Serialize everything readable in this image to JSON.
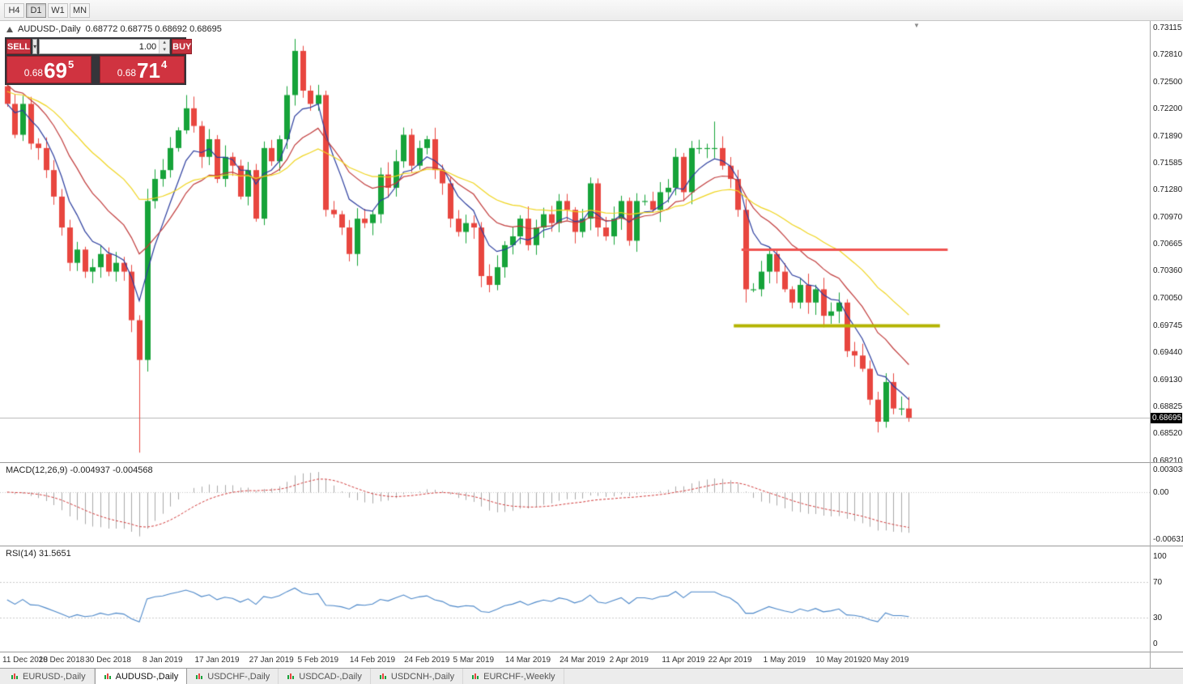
{
  "toolbar": {
    "timeframes": [
      {
        "label": "H4",
        "active": false
      },
      {
        "label": "D1",
        "active": true
      },
      {
        "label": "W1",
        "active": false
      },
      {
        "label": "MN",
        "active": false
      }
    ]
  },
  "chart_header": {
    "symbol": "AUDUSD-,Daily",
    "ohlc": "0.68772 0.68775 0.68692 0.68695"
  },
  "trade_panel": {
    "sell_label": "SELL",
    "buy_label": "BUY",
    "volume": "1.00",
    "sell_price": {
      "prefix": "0.68",
      "pips": "69",
      "point": "5"
    },
    "buy_price": {
      "prefix": "0.68",
      "pips": "71",
      "point": "4"
    }
  },
  "icons": {
    "chart_title_icon": "triangle-up",
    "shift_marker": "triangle-down",
    "volume_dropdown": "chevron-down",
    "volume_spinner_up": "chevron-up",
    "volume_spinner_down": "chevron-down",
    "tab_icon": "mini-candlestick-chart"
  },
  "chart_data": {
    "type": "candlestick",
    "symbol": "AUDUSD",
    "period": "Daily",
    "price_axis": {
      "max": 0.73115,
      "min": 0.6821,
      "labels": [
        "0.73115",
        "0.72810",
        "0.72500",
        "0.72200",
        "0.71890",
        "0.71585",
        "0.71280",
        "0.70970",
        "0.70665",
        "0.70360",
        "0.70050",
        "0.69745",
        "0.69440",
        "0.69130",
        "0.68825",
        "0.68520",
        "0.68210"
      ]
    },
    "x_axis": {
      "labels": [
        "11 Dec 2018",
        "20 Dec 2018",
        "30 Dec 2018",
        "8 Jan 2019",
        "17 Jan 2019",
        "27 Jan 2019",
        "5 Feb 2019",
        "14 Feb 2019",
        "24 Feb 2019",
        "5 Mar 2019",
        "14 Mar 2019",
        "24 Mar 2019",
        "2 Apr 2019",
        "11 Apr 2019",
        "22 Apr 2019",
        "1 May 2019",
        "10 May 2019",
        "20 May 2019"
      ],
      "bar_indices": [
        0,
        7,
        13,
        20,
        27,
        34,
        40,
        47,
        54,
        60,
        67,
        74,
        80,
        87,
        93,
        100,
        107,
        113
      ]
    },
    "current_price": 0.68695,
    "current_price_label": "0.68695",
    "candles": {
      "first_open": 0.7245,
      "closes": [
        0.7225,
        0.719,
        0.7225,
        0.718,
        0.7175,
        0.715,
        0.712,
        0.7085,
        0.7045,
        0.706,
        0.7035,
        0.704,
        0.7055,
        0.7035,
        0.7045,
        0.7035,
        0.698,
        0.6935,
        0.7115,
        0.714,
        0.715,
        0.7175,
        0.7195,
        0.722,
        0.72,
        0.7165,
        0.7185,
        0.714,
        0.7165,
        0.7155,
        0.712,
        0.715,
        0.7095,
        0.7175,
        0.716,
        0.7185,
        0.7235,
        0.7285,
        0.724,
        0.7225,
        0.7235,
        0.7105,
        0.71,
        0.7085,
        0.7055,
        0.7095,
        0.709,
        0.71,
        0.7145,
        0.713,
        0.716,
        0.719,
        0.7155,
        0.7175,
        0.7185,
        0.715,
        0.7135,
        0.7095,
        0.708,
        0.709,
        0.7085,
        0.703,
        0.702,
        0.704,
        0.7065,
        0.7075,
        0.7095,
        0.7065,
        0.7085,
        0.71,
        0.709,
        0.7115,
        0.7105,
        0.708,
        0.7095,
        0.7135,
        0.7085,
        0.7075,
        0.7095,
        0.7115,
        0.707,
        0.7115,
        0.7115,
        0.7105,
        0.7125,
        0.713,
        0.7165,
        0.7125,
        0.7175,
        0.7175,
        0.7175,
        0.7175,
        0.7155,
        0.714,
        0.7105,
        0.7015,
        0.7015,
        0.7035,
        0.7055,
        0.7035,
        0.7015,
        0.7,
        0.702,
        0.7,
        0.7015,
        0.6985,
        0.699,
        0.7,
        0.6945,
        0.694,
        0.6925,
        0.689,
        0.6865,
        0.691,
        0.688,
        0.688,
        0.68695
      ],
      "special": {
        "17": {
          "low": 0.683
        },
        "23": {
          "high": 0.7235
        },
        "41": {
          "high": 0.724
        },
        "91": {
          "high": 0.7205
        },
        "95": {
          "low": 0.7
        }
      }
    },
    "overlays": [
      {
        "name": "ma-fast-blue",
        "period": 6,
        "color": "#2b3d9e"
      },
      {
        "name": "ma-mid-red",
        "period": 14,
        "color": "#c03a3a",
        "start": 0.725
      },
      {
        "name": "ma-slow-yellow",
        "period": 30,
        "color": "#efd41e",
        "start": 0.724
      }
    ],
    "hlines": [
      {
        "name": "resistance-line",
        "value": 0.706,
        "color": "#ef5350",
        "width": 3,
        "from_bar": 95,
        "to_bar": 121
      },
      {
        "name": "support-line",
        "value": 0.6974,
        "color": "#b4b400",
        "width": 4,
        "from_bar": 94,
        "to_bar": 120
      }
    ],
    "colors": {
      "up": "#16a339",
      "down": "#e8463f",
      "current_price_line": "#b6b6b6"
    }
  },
  "macd": {
    "header": "MACD(12,26,9) -0.004937 -0.004568",
    "fast": 12,
    "slow": 26,
    "signal": 9,
    "value_label": "-0.004937",
    "signal_value_label": "-0.004568",
    "scale_max": 0.003035,
    "scale_min": -0.00631,
    "axis_labels": [
      "0.003035",
      "0.00",
      "-0.00631"
    ],
    "histogram_color": "#a9a9a9",
    "signal_color": "#d03a3a"
  },
  "rsi": {
    "header": "RSI(14) 31.5651",
    "period": 14,
    "value_label": "31.5651",
    "axis_labels": [
      "100",
      "70",
      "30",
      "0"
    ],
    "axis_values": [
      100,
      70,
      30,
      0
    ],
    "levels": [
      70,
      30
    ],
    "line_color": "#4a86c8"
  },
  "tabs": [
    {
      "label": "EURUSD-,Daily",
      "active": false
    },
    {
      "label": "AUDUSD-,Daily",
      "active": true
    },
    {
      "label": "USDCHF-,Daily",
      "active": false
    },
    {
      "label": "USDCAD-,Daily",
      "active": false
    },
    {
      "label": "USDCNH-,Daily",
      "active": false
    },
    {
      "label": "EURCHF-,Weekly",
      "active": false
    }
  ]
}
